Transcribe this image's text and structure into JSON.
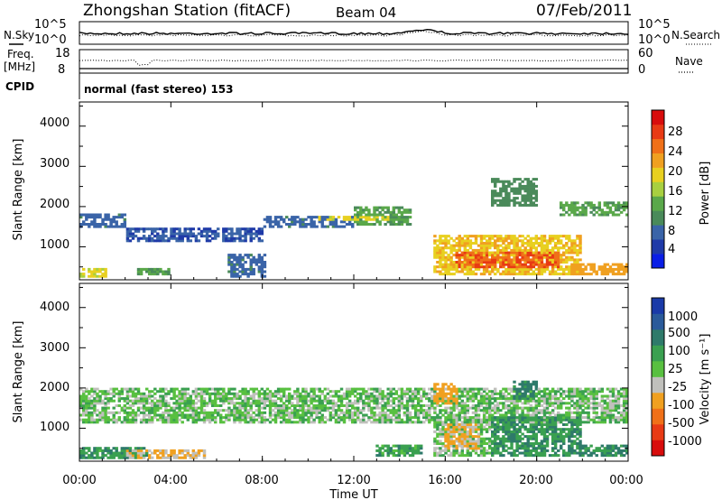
{
  "header": {
    "title": "Zhongshan Station (fitACF)",
    "beam": "Beam 04",
    "date": "07/Feb/2011"
  },
  "status_panels": {
    "nsky_label": "N.Sky",
    "nsearch_label": "N.Search",
    "noise_left_ticks": [
      "10^5",
      "10^0"
    ],
    "noise_right_ticks": [
      "10^5",
      "10^0"
    ],
    "freq_label": "Freq.",
    "freq_unit": "[MHz]",
    "freq_ticks": [
      "18",
      "8"
    ],
    "nave_label": "Nave",
    "nave_ticks": [
      "60",
      "0"
    ],
    "cpid_label": "CPID",
    "cpid_text": "normal (fast stereo) 153"
  },
  "x_axis": {
    "label": "Time UT",
    "ticks": [
      "00:00",
      "04:00",
      "08:00",
      "12:00",
      "16:00",
      "20:00",
      "00:00"
    ]
  },
  "panels": {
    "power": {
      "ylabel": "Slant Range [km]",
      "yticks": [
        "4000",
        "3000",
        "2000",
        "1000"
      ],
      "cbar_label": "Power [dB]",
      "cbar_ticks": [
        "28",
        "24",
        "20",
        "16",
        "12",
        "8",
        "4"
      ]
    },
    "velocity": {
      "ylabel": "Slant Range [km]",
      "yticks": [
        "4000",
        "3000",
        "2000",
        "1000"
      ],
      "cbar_label": "Velocity [m s⁻¹]",
      "cbar_ticks": [
        "1000",
        "500",
        "100",
        "25",
        "-25",
        "-100",
        "-500",
        "-1000"
      ]
    }
  },
  "colors": {
    "power_scale": [
      "#0a1ee6",
      "#1f3aa8",
      "#3a64a8",
      "#4a8a5a",
      "#5aa84a",
      "#a8d040",
      "#e8d020",
      "#f0a020",
      "#f07018",
      "#e83a14",
      "#d80c0c"
    ],
    "velocity_scale": [
      "#1a3aa8",
      "#2a5a9a",
      "#2e7a6a",
      "#3aa050",
      "#58c040",
      "#c0c0bc",
      "#f0a020",
      "#f07018",
      "#e83a14",
      "#d80c0c"
    ]
  },
  "chart_data": [
    {
      "type": "heatmap",
      "title": "Power",
      "x_label": "Time UT",
      "x_range_hours": [
        0,
        24
      ],
      "ylabel": "Slant Range [km]",
      "ylim": [
        180,
        4600
      ],
      "zlabel": "Power [dB]",
      "zlim": [
        0,
        32
      ],
      "features": [
        {
          "t": [
            0.0,
            2.0
          ],
          "range": [
            1500,
            1850
          ],
          "value": 8
        },
        {
          "t": [
            2.0,
            8.0
          ],
          "range": [
            1150,
            1450
          ],
          "value": 6
        },
        {
          "t": [
            8.0,
            12.0
          ],
          "range": [
            1450,
            1750
          ],
          "value": 8
        },
        {
          "t": [
            12.0,
            14.5
          ],
          "range": [
            1550,
            2000
          ],
          "value": 12
        },
        {
          "t": [
            10.5,
            13.5
          ],
          "range": [
            1650,
            1800
          ],
          "value": 18
        },
        {
          "t": [
            0.0,
            1.2
          ],
          "range": [
            250,
            500
          ],
          "value": 18
        },
        {
          "t": [
            2.5,
            4.0
          ],
          "range": [
            300,
            500
          ],
          "value": 12
        },
        {
          "t": [
            6.5,
            8.2
          ],
          "range": [
            250,
            800
          ],
          "value": 8
        },
        {
          "t": [
            15.5,
            22.0
          ],
          "range": [
            300,
            1300
          ],
          "value": 20
        },
        {
          "t": [
            16.5,
            21.0
          ],
          "range": [
            500,
            900
          ],
          "value": 26
        },
        {
          "t": [
            21.5,
            24.0
          ],
          "range": [
            300,
            600
          ],
          "value": 22
        },
        {
          "t": [
            21.0,
            24.0
          ],
          "range": [
            1800,
            2100
          ],
          "value": 12
        },
        {
          "t": [
            18.0,
            20.0
          ],
          "range": [
            2000,
            2700
          ],
          "value": 10
        }
      ]
    },
    {
      "type": "heatmap",
      "title": "Velocity",
      "x_label": "Time UT",
      "x_range_hours": [
        0,
        24
      ],
      "ylabel": "Slant Range [km]",
      "ylim": [
        180,
        4600
      ],
      "zlabel": "Velocity [m s⁻¹]",
      "zlim": [
        -1000,
        1000
      ],
      "features": [
        {
          "t": [
            0.0,
            24.0
          ],
          "range": [
            1150,
            2000
          ],
          "value": 0
        },
        {
          "t": [
            0.0,
            3.0
          ],
          "range": [
            250,
            550
          ],
          "value": 80
        },
        {
          "t": [
            2.0,
            5.5
          ],
          "range": [
            250,
            500
          ],
          "value": -90
        },
        {
          "t": [
            13.0,
            15.0
          ],
          "range": [
            300,
            600
          ],
          "value": 70
        },
        {
          "t": [
            15.5,
            18.0
          ],
          "range": [
            300,
            1300
          ],
          "value": 0
        },
        {
          "t": [
            16.0,
            17.5
          ],
          "range": [
            500,
            1100
          ],
          "value": -120
        },
        {
          "t": [
            18.0,
            22.0
          ],
          "range": [
            300,
            1300
          ],
          "value": 90
        },
        {
          "t": [
            22.0,
            24.0
          ],
          "range": [
            300,
            600
          ],
          "value": 110
        },
        {
          "t": [
            15.5,
            16.5
          ],
          "range": [
            1600,
            2100
          ],
          "value": -300
        },
        {
          "t": [
            19.0,
            20.0
          ],
          "range": [
            1700,
            2200
          ],
          "value": 150
        }
      ]
    }
  ]
}
